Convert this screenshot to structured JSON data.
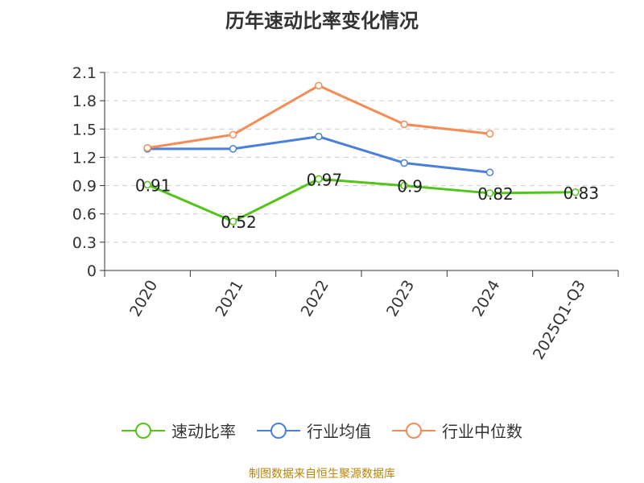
{
  "title": "历年速动比率变化情况",
  "source": "制图数据来自恒生聚源数据库",
  "chart_data": {
    "type": "line",
    "title": "历年速动比率变化情况",
    "categories": [
      "2020",
      "2021",
      "2022",
      "2023",
      "2024",
      "2025Q1-Q3"
    ],
    "y_ticks": [
      "0",
      "0.3",
      "0.6",
      "0.9",
      "1.2",
      "1.5",
      "1.8",
      "2.1"
    ],
    "ylim": [
      0,
      2.1
    ],
    "grid": true,
    "legend_position": "bottom",
    "series": [
      {
        "name": "速动比率",
        "color": "#52c41a",
        "values": [
          0.91,
          0.52,
          0.97,
          0.9,
          0.82,
          0.83
        ],
        "labels": [
          "0.91",
          "0.52",
          "0.97",
          "0.9",
          "0.82",
          "0.83"
        ]
      },
      {
        "name": "行业均值",
        "color": "#4a7fdb",
        "values": [
          1.29,
          1.29,
          1.42,
          1.14,
          1.04,
          null
        ]
      },
      {
        "name": "行业中位数",
        "color": "#f58b55",
        "values": [
          1.3,
          1.44,
          1.96,
          1.55,
          1.45,
          null
        ]
      }
    ]
  }
}
